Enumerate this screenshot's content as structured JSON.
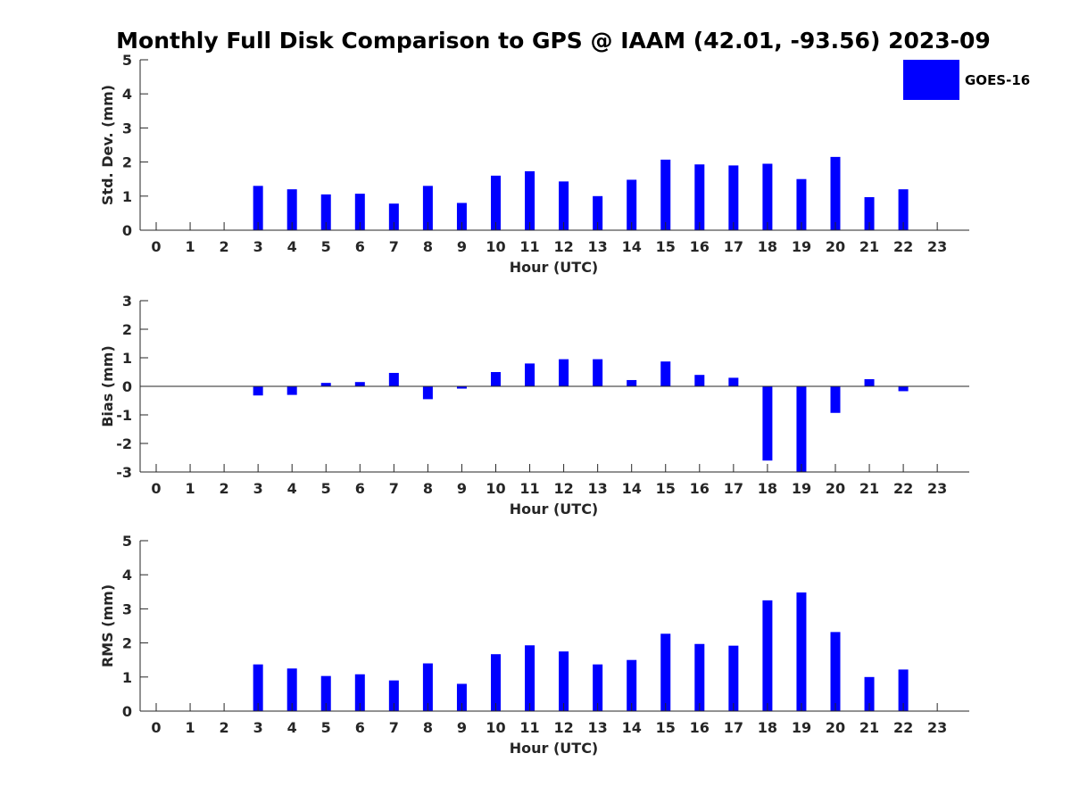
{
  "title": "Monthly Full Disk Comparison to GPS @ IAAM (42.01, -93.56) 2023-09",
  "legend": {
    "label": "GOES-16",
    "color": "#0000ff"
  },
  "axis_color": "#262626",
  "chart_data": [
    {
      "type": "bar",
      "name": "std-dev",
      "ylabel": "Std. Dev. (mm)",
      "xlabel": "Hour (UTC)",
      "ylim": [
        0,
        5
      ],
      "yticks": [
        0,
        1,
        2,
        3,
        4,
        5
      ],
      "categories": [
        0,
        1,
        2,
        3,
        4,
        5,
        6,
        7,
        8,
        9,
        10,
        11,
        12,
        13,
        14,
        15,
        16,
        17,
        18,
        19,
        20,
        21,
        22,
        23
      ],
      "series": [
        {
          "name": "GOES-16",
          "values": [
            null,
            null,
            null,
            1.3,
            1.2,
            1.05,
            1.07,
            0.78,
            1.3,
            0.8,
            1.6,
            1.73,
            1.43,
            1.0,
            1.48,
            2.07,
            1.93,
            1.9,
            1.95,
            1.5,
            2.15,
            0.97,
            1.2,
            null
          ]
        }
      ]
    },
    {
      "type": "bar",
      "name": "bias",
      "ylabel": "Bias (mm)",
      "xlabel": "Hour (UTC)",
      "ylim": [
        -3,
        3
      ],
      "yticks": [
        -3,
        -2,
        -1,
        0,
        1,
        2,
        3
      ],
      "zero_line": true,
      "categories": [
        0,
        1,
        2,
        3,
        4,
        5,
        6,
        7,
        8,
        9,
        10,
        11,
        12,
        13,
        14,
        15,
        16,
        17,
        18,
        19,
        20,
        21,
        22,
        23
      ],
      "series": [
        {
          "name": "GOES-16",
          "values": [
            null,
            null,
            null,
            -0.32,
            -0.3,
            0.12,
            0.15,
            0.47,
            -0.45,
            -0.08,
            0.5,
            0.8,
            0.95,
            0.95,
            0.22,
            0.87,
            0.4,
            0.3,
            -2.6,
            -3.0,
            -0.93,
            0.25,
            -0.17,
            null
          ]
        }
      ]
    },
    {
      "type": "bar",
      "name": "rms",
      "ylabel": "RMS (mm)",
      "xlabel": "Hour (UTC)",
      "ylim": [
        0,
        5
      ],
      "yticks": [
        0,
        1,
        2,
        3,
        4,
        5
      ],
      "categories": [
        0,
        1,
        2,
        3,
        4,
        5,
        6,
        7,
        8,
        9,
        10,
        11,
        12,
        13,
        14,
        15,
        16,
        17,
        18,
        19,
        20,
        21,
        22,
        23
      ],
      "series": [
        {
          "name": "GOES-16",
          "values": [
            null,
            null,
            null,
            1.37,
            1.25,
            1.03,
            1.08,
            0.9,
            1.4,
            0.8,
            1.67,
            1.93,
            1.75,
            1.37,
            1.5,
            2.27,
            1.97,
            1.92,
            3.25,
            3.48,
            2.32,
            1.0,
            1.22,
            null
          ]
        }
      ]
    }
  ]
}
